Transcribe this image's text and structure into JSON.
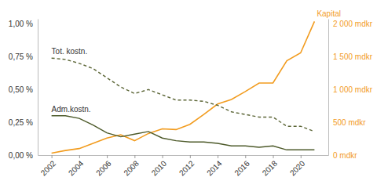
{
  "chart_data": {
    "type": "line",
    "x": [
      2002,
      2003,
      2004,
      2005,
      2006,
      2007,
      2008,
      2009,
      2010,
      2011,
      2012,
      2013,
      2014,
      2015,
      2016,
      2017,
      2018,
      2019,
      2020,
      2021
    ],
    "xlim": [
      2001,
      2022
    ],
    "xticks": [
      2002,
      2004,
      2006,
      2008,
      2010,
      2012,
      2014,
      2016,
      2018,
      2020
    ],
    "ylim": [
      0,
      1.04
    ],
    "yticks": [
      {
        "value": 0,
        "label": "0,00 %"
      },
      {
        "value": 0.25,
        "label": "0,25 %"
      },
      {
        "value": 0.5,
        "label": "0,50 %"
      },
      {
        "value": 0.75,
        "label": "0,75 %"
      },
      {
        "value": 1,
        "label": "1,00 %"
      }
    ],
    "y2lim": [
      0,
      2080
    ],
    "y2ticks": [
      {
        "value": 0,
        "label": "0 mdkr"
      },
      {
        "value": 500,
        "label": "500 mdkr"
      },
      {
        "value": 1000,
        "label": "1 000 mdkr"
      },
      {
        "value": 1500,
        "label": "1 500 mdkr"
      },
      {
        "value": 2000,
        "label": "2 000 mdkr"
      }
    ],
    "grid": false,
    "series": [
      {
        "name": "Kapital",
        "color": "#f29c1f",
        "axis": "y2",
        "line_style": "solid",
        "values": [
          30,
          70,
          100,
          180,
          260,
          310,
          220,
          330,
          400,
          390,
          470,
          620,
          780,
          850,
          970,
          1100,
          1100,
          1440,
          1560,
          2040
        ]
      },
      {
        "name": "Tot. kostn.",
        "color": "#5c6637",
        "line_style": "dashed",
        "values": [
          0.74,
          0.73,
          0.7,
          0.66,
          0.59,
          0.52,
          0.47,
          0.5,
          0.46,
          0.42,
          0.42,
          0.41,
          0.38,
          0.33,
          0.31,
          0.29,
          0.29,
          0.22,
          0.22,
          0.18
        ]
      },
      {
        "name": "Adm.kostn.",
        "color": "#4d5a2a",
        "line_style": "solid",
        "values": [
          0.3,
          0.3,
          0.28,
          0.23,
          0.17,
          0.14,
          0.16,
          0.18,
          0.13,
          0.11,
          0.1,
          0.1,
          0.09,
          0.07,
          0.07,
          0.06,
          0.07,
          0.04,
          0.04,
          0.04
        ]
      }
    ]
  }
}
